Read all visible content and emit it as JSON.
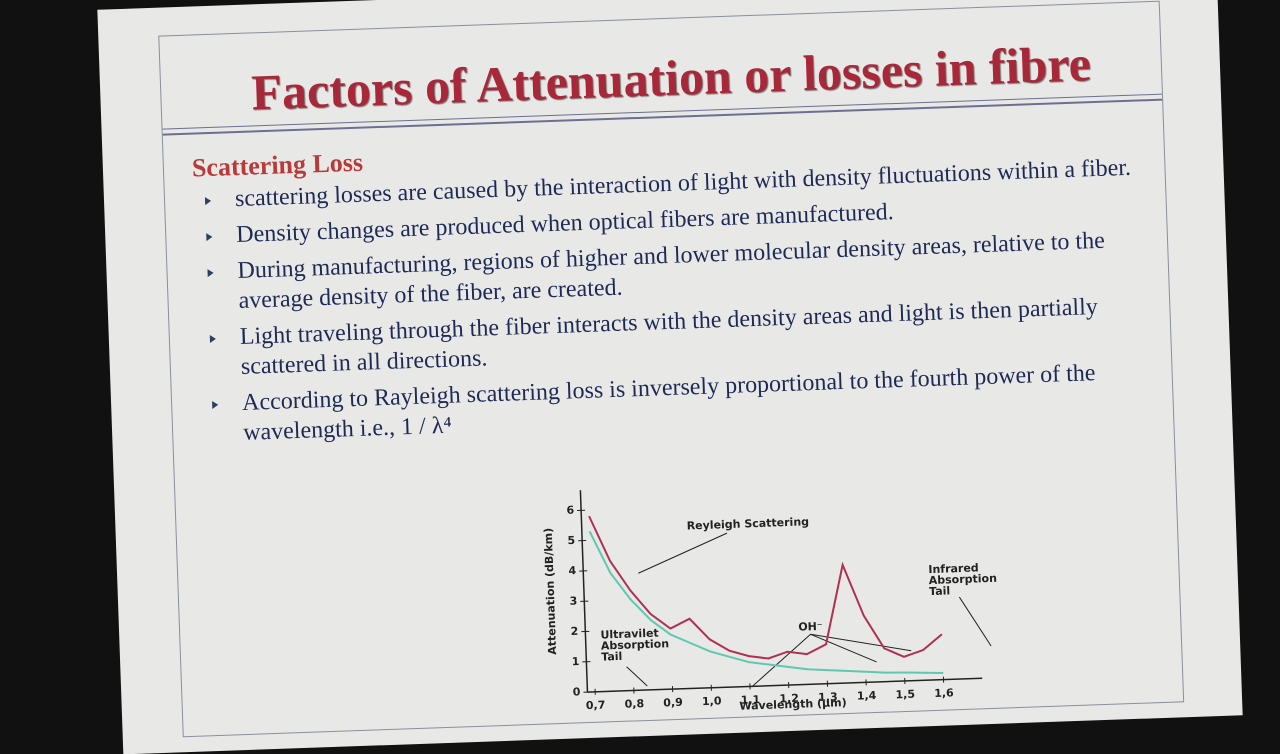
{
  "slide": {
    "title": "Factors of Attenuation or losses in fibre",
    "heading": "Scattering Loss",
    "bullets": [
      "scattering losses are caused by the interaction of light with density fluctuations within a fiber.",
      "Density changes are produced when optical fibers are manufactured.",
      "During manufacturing, regions of higher and lower molecular density areas, relative to the average density of the fiber, are created.",
      "Light traveling through the fiber interacts with the density areas and light is then partially scattered in all directions.",
      "According to Rayleigh scattering loss is inversely proportional to the fourth power of the wavelength i.e., 1 / λ⁴"
    ]
  },
  "chart_data": {
    "type": "line",
    "x_label": "Wavelength (μm)",
    "y_label": "Attenuation (dB/km)",
    "annotations": [
      "Reyleigh Scattering",
      "Ultravilet Absorption Tail",
      "OH⁻",
      "Infrared Absorption Tail"
    ],
    "x": [
      0.7,
      0.75,
      0.8,
      0.85,
      0.9,
      0.95,
      1.0,
      1.05,
      1.1,
      1.15,
      1.2,
      1.25,
      1.3,
      1.35,
      1.4,
      1.45,
      1.5,
      1.55,
      1.6
    ],
    "series": [
      {
        "color": "#b03050",
        "values": [
          5.8,
          4.3,
          3.3,
          2.5,
          2.0,
          2.3,
          1.6,
          1.2,
          1.0,
          0.9,
          1.1,
          1.0,
          1.3,
          3.9,
          2.2,
          1.1,
          0.8,
          1.0,
          1.5
        ]
      },
      {
        "color": "#5fc8b0",
        "values": [
          5.3,
          3.9,
          3.0,
          2.3,
          1.8,
          1.5,
          1.2,
          1.0,
          0.8,
          0.7,
          0.6,
          0.5,
          0.45,
          0.4,
          0.35,
          0.3,
          0.28,
          0.25,
          0.22
        ]
      }
    ],
    "xlim": [
      0.68,
      1.7
    ],
    "ylim": [
      0,
      6.5
    ],
    "xticks": [
      {
        "value": 0.7,
        "label": "0,7"
      },
      {
        "value": 0.8,
        "label": "0,8"
      },
      {
        "value": 0.9,
        "label": "0,9"
      },
      {
        "value": 1.0,
        "label": "1,0"
      },
      {
        "value": 1.1,
        "label": "1,1"
      },
      {
        "value": 1.2,
        "label": "1,2"
      },
      {
        "value": 1.3,
        "label": "1,3"
      },
      {
        "value": 1.4,
        "label": "1,4"
      },
      {
        "value": 1.5,
        "label": "1,5"
      },
      {
        "value": 1.6,
        "label": "1,6"
      }
    ],
    "yticks": [
      0,
      1,
      2,
      3,
      4,
      5,
      6
    ]
  }
}
